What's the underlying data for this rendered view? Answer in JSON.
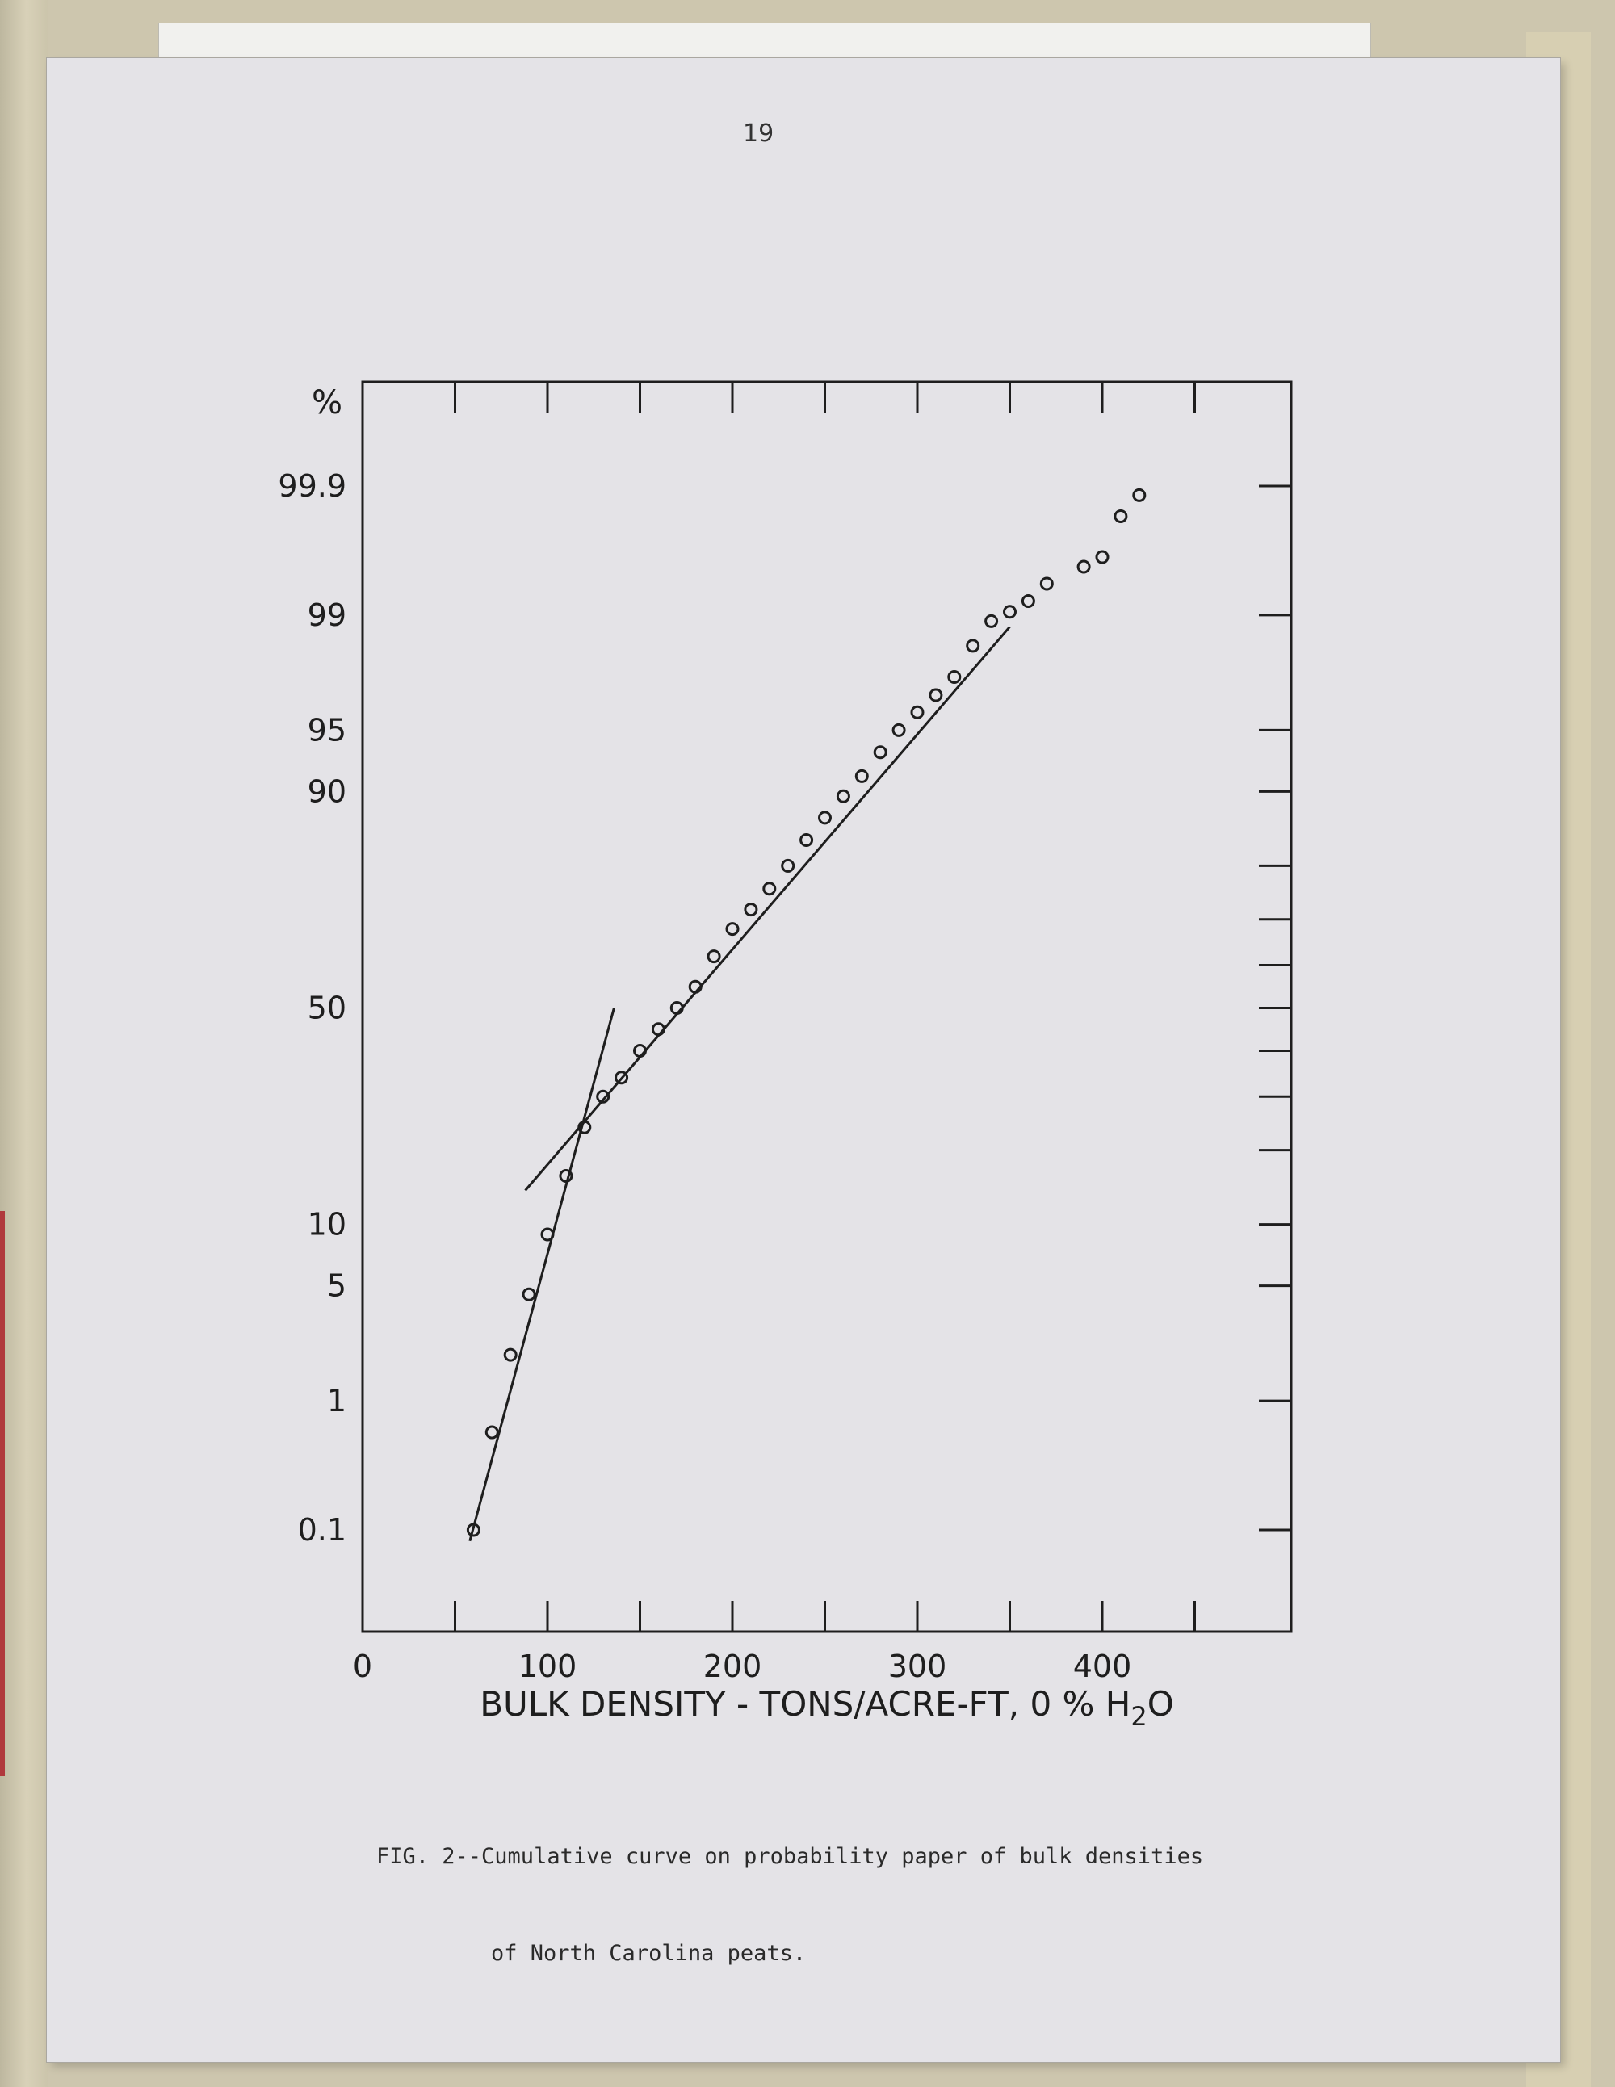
{
  "page_number": "19",
  "caption": {
    "line1": "FIG. 2--Cumulative curve on probability paper of bulk densities",
    "line2": "of North Carolina peats."
  },
  "chart_data": {
    "type": "scatter",
    "title": "",
    "xlabel": "BULK DENSITY - TONS/ACRE-FT, 0 % H2O",
    "ylabel": "%",
    "x_tick_labels": [
      "0",
      "100",
      "200",
      "300",
      "400"
    ],
    "y_tick_labels": [
      "99.9",
      "99",
      "95",
      "90",
      "50",
      "10",
      "5",
      "1",
      "0.1"
    ],
    "x_range": [
      0,
      500
    ],
    "y_scale": "probability",
    "grid": false,
    "legend": "none",
    "series": [
      {
        "points": [
          {
            "x": 60,
            "y": 0.1
          },
          {
            "x": 70,
            "y": 0.6
          },
          {
            "x": 80,
            "y": 2
          },
          {
            "x": 90,
            "y": 4.5
          },
          {
            "x": 100,
            "y": 9
          },
          {
            "x": 110,
            "y": 16
          },
          {
            "x": 120,
            "y": 24
          },
          {
            "x": 130,
            "y": 30
          },
          {
            "x": 140,
            "y": 34
          },
          {
            "x": 150,
            "y": 40
          },
          {
            "x": 160,
            "y": 45
          },
          {
            "x": 170,
            "y": 50
          },
          {
            "x": 180,
            "y": 55
          },
          {
            "x": 190,
            "y": 62
          },
          {
            "x": 200,
            "y": 68
          },
          {
            "x": 210,
            "y": 72
          },
          {
            "x": 220,
            "y": 76
          },
          {
            "x": 230,
            "y": 80
          },
          {
            "x": 240,
            "y": 84
          },
          {
            "x": 250,
            "y": 87
          },
          {
            "x": 260,
            "y": 89.5
          },
          {
            "x": 270,
            "y": 91.5
          },
          {
            "x": 280,
            "y": 93.5
          },
          {
            "x": 290,
            "y": 95
          },
          {
            "x": 300,
            "y": 96
          },
          {
            "x": 310,
            "y": 96.8
          },
          {
            "x": 320,
            "y": 97.5
          },
          {
            "x": 330,
            "y": 98.4
          },
          {
            "x": 340,
            "y": 98.9
          },
          {
            "x": 350,
            "y": 99.05
          },
          {
            "x": 360,
            "y": 99.2
          },
          {
            "x": 370,
            "y": 99.4
          },
          {
            "x": 390,
            "y": 99.55
          },
          {
            "x": 400,
            "y": 99.62
          },
          {
            "x": 410,
            "y": 99.82
          },
          {
            "x": 420,
            "y": 99.88
          }
        ]
      }
    ],
    "fit_lines": [
      {
        "x": [
          58,
          136
        ],
        "y": [
          0.08,
          50
        ]
      },
      {
        "x": [
          88,
          350
        ],
        "y": [
          14,
          98.8
        ]
      }
    ]
  }
}
